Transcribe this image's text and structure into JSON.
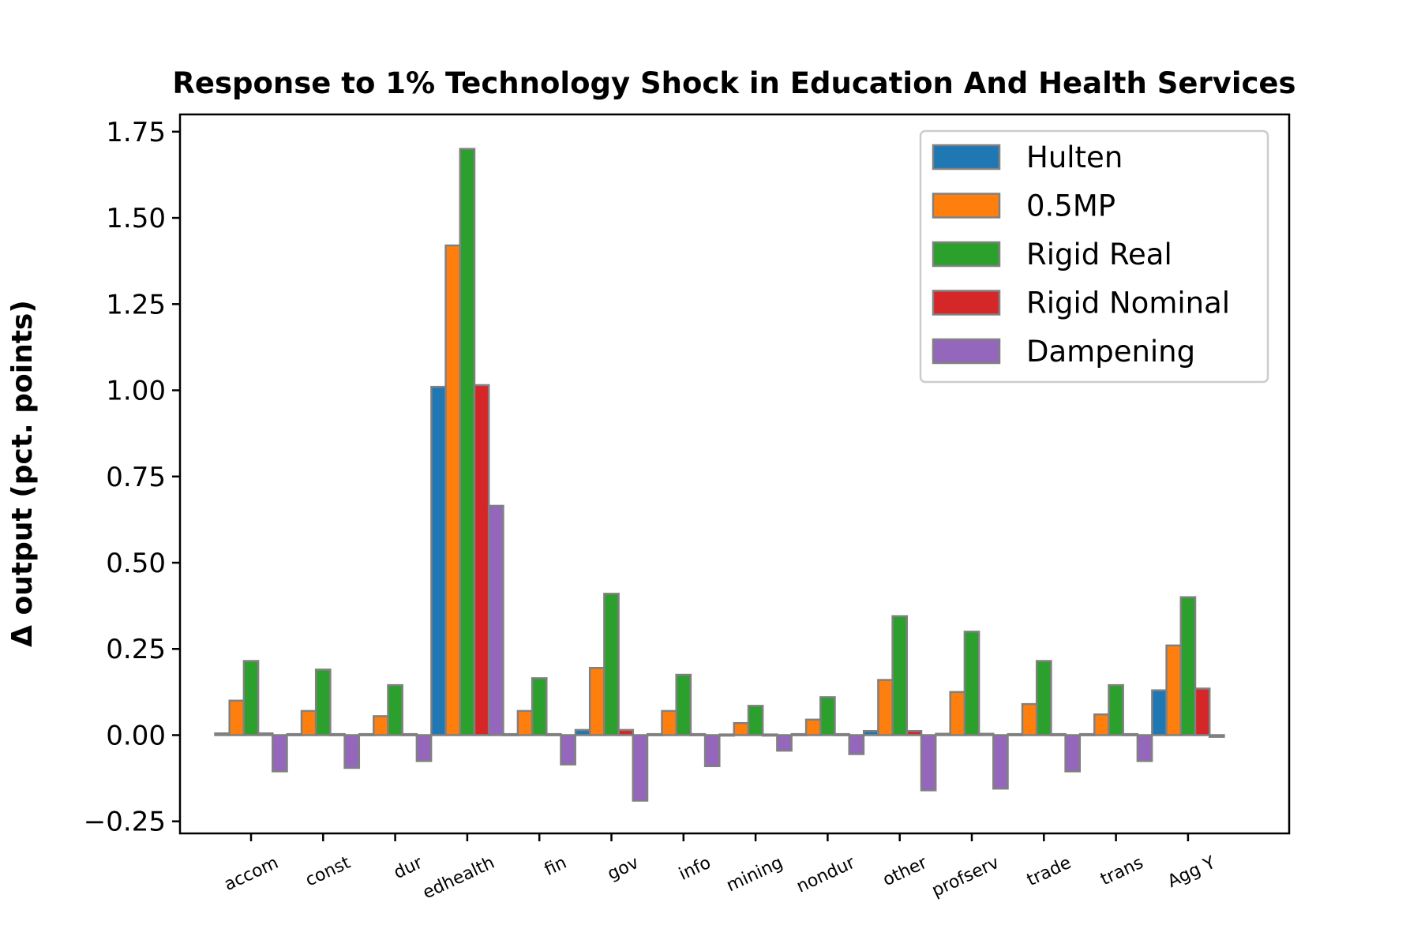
{
  "chart_data": {
    "type": "bar",
    "title": "Response to 1% Technology Shock in Education And Health Services",
    "xlabel": "",
    "ylabel": "Δ output (pct. points)",
    "categories": [
      "accom",
      "const",
      "dur",
      "edhealth",
      "fin",
      "gov",
      "info",
      "mining",
      "nondur",
      "other",
      "profserv",
      "trade",
      "trans",
      "Agg Y"
    ],
    "ylim": [
      -0.285,
      1.8
    ],
    "yticks": [
      -0.25,
      0.0,
      0.25,
      0.5,
      0.75,
      1.0,
      1.25,
      1.5,
      1.75
    ],
    "ytick_labels": [
      "−0.25",
      "0.00",
      "0.25",
      "0.50",
      "0.75",
      "1.00",
      "1.25",
      "1.50",
      "1.75"
    ],
    "grid": false,
    "legend_position": "top-right",
    "bar_edge_color": "#808080",
    "series": [
      {
        "name": "Hulten",
        "color": "#1f77b4",
        "values": [
          0.005,
          0.003,
          0.003,
          1.01,
          0.003,
          0.015,
          0.003,
          0.002,
          0.003,
          0.012,
          0.004,
          0.003,
          0.003,
          0.13
        ]
      },
      {
        "name": "0.5MP",
        "color": "#ff7f0e",
        "values": [
          0.1,
          0.07,
          0.055,
          1.42,
          0.07,
          0.195,
          0.07,
          0.035,
          0.045,
          0.16,
          0.125,
          0.09,
          0.06,
          0.26
        ]
      },
      {
        "name": "Rigid Real",
        "color": "#2ca02c",
        "values": [
          0.215,
          0.19,
          0.145,
          1.7,
          0.165,
          0.41,
          0.175,
          0.085,
          0.11,
          0.345,
          0.3,
          0.215,
          0.145,
          0.4
        ]
      },
      {
        "name": "Rigid Nominal",
        "color": "#d62728",
        "values": [
          0.005,
          0.003,
          0.003,
          1.015,
          0.003,
          0.015,
          0.003,
          0.002,
          0.003,
          0.012,
          0.004,
          0.003,
          0.003,
          0.135
        ]
      },
      {
        "name": "Dampening",
        "color": "#9467bd",
        "values": [
          -0.105,
          -0.095,
          -0.075,
          0.665,
          -0.085,
          -0.19,
          -0.09,
          -0.045,
          -0.055,
          -0.16,
          -0.155,
          -0.105,
          -0.075,
          -0.005
        ]
      }
    ]
  }
}
